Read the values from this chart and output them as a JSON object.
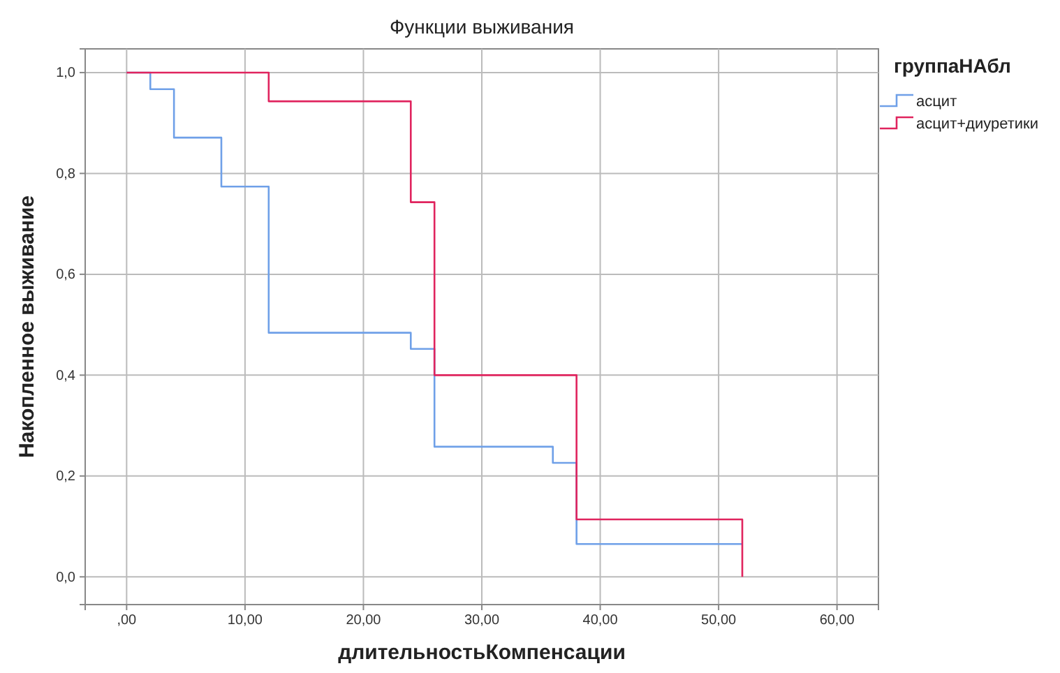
{
  "chart_data": {
    "type": "step",
    "title": "Функции выживания",
    "xlabel": "длительностьКомпенсации",
    "ylabel": "Накопленное выживание",
    "legend_title": "группаНАбл",
    "legend": "right",
    "grid": true,
    "xlim": [
      -3.5,
      63.5
    ],
    "xticks": [
      {
        "value": 0,
        "label": ",00"
      },
      {
        "value": 10,
        "label": "10,00"
      },
      {
        "value": 20,
        "label": "20,00"
      },
      {
        "value": 30,
        "label": "30,00"
      },
      {
        "value": 40,
        "label": "40,00"
      },
      {
        "value": 50,
        "label": "50,00"
      },
      {
        "value": 60,
        "label": "60,00"
      }
    ],
    "ylim": [
      -0.055,
      1.047
    ],
    "yticks": [
      {
        "value": 0,
        "label": "0,0"
      },
      {
        "value": 0.2,
        "label": "0,2"
      },
      {
        "value": 0.4,
        "label": "0,4"
      },
      {
        "value": 0.6,
        "label": "0,6"
      },
      {
        "value": 0.8,
        "label": "0,8"
      },
      {
        "value": 1,
        "label": "1,0"
      }
    ],
    "series": [
      {
        "name": "асцит",
        "color": "#6fa0e8",
        "x": [
          0,
          2,
          4,
          8,
          12,
          24,
          26,
          36,
          38,
          52
        ],
        "values": [
          1,
          0.967,
          0.871,
          0.774,
          0.484,
          0.452,
          0.258,
          0.226,
          0.065,
          0.065
        ]
      },
      {
        "name": "асцит+диуретики",
        "color": "#e0245e",
        "x": [
          0,
          12,
          24,
          26,
          38,
          52,
          52
        ],
        "values": [
          1,
          0.943,
          0.743,
          0.4,
          0.114,
          0.114,
          0
        ]
      }
    ]
  }
}
